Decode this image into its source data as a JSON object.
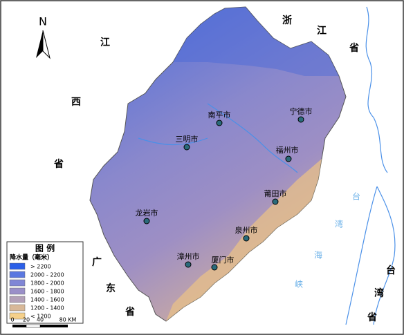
{
  "map": {
    "north": "N",
    "regions": [
      {
        "chars": [
          "浙",
          "江",
          "省"
        ]
      },
      {
        "chars": [
          "江",
          "西",
          "省"
        ]
      },
      {
        "chars": [
          "广",
          "东",
          "省"
        ]
      },
      {
        "chars": [
          "台",
          "湾",
          "省"
        ]
      },
      {
        "chars": [
          "台",
          "湾",
          "海",
          "峡"
        ]
      }
    ],
    "cities": [
      "南平市",
      "三明市",
      "宁德市",
      "福州市",
      "莆田市",
      "泉州市",
      "龙岩市",
      "漳州市",
      "厦门市"
    ],
    "legend": {
      "title": "图 例",
      "subtitle": "降水量（毫米）",
      "items": [
        {
          "label": "> 2200",
          "color": "#2b5fe8"
        },
        {
          "label": "2000 - 2200",
          "color": "#5b78e0"
        },
        {
          "label": "1800 - 2000",
          "color": "#8086d6"
        },
        {
          "label": "1600 - 1800",
          "color": "#9a8fc8"
        },
        {
          "label": "1400 - 1600",
          "color": "#b3a0b8"
        },
        {
          "label": "1200 - 1400",
          "color": "#d8b898"
        },
        {
          "label": "< 1200",
          "color": "#f5d08a"
        }
      ]
    },
    "scale": [
      "0",
      "20",
      "40",
      "80 KM"
    ]
  }
}
